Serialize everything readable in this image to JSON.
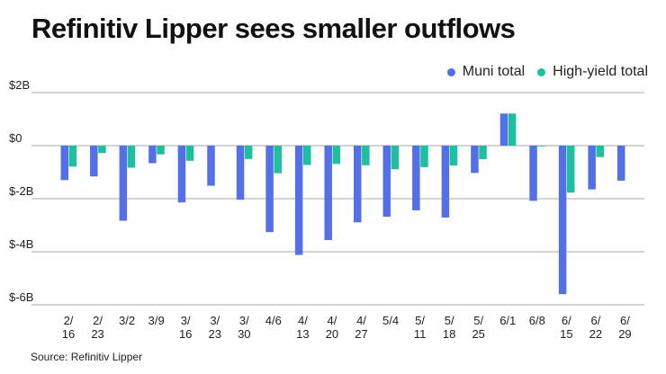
{
  "chart_data": {
    "type": "bar",
    "title": "Refinitiv Lipper sees smaller outflows",
    "xlabel": "",
    "ylabel": "",
    "ylim": [
      -6,
      2
    ],
    "yticks": [
      2,
      0,
      -2,
      -4,
      -6
    ],
    "ytick_labels": [
      "$2B",
      "$0",
      "$-2B",
      "$-4B",
      "$-6B"
    ],
    "grid": true,
    "legend_position": "top-right",
    "categories": [
      "2/16",
      "2/23",
      "3/2",
      "3/9",
      "3/16",
      "3/23",
      "3/30",
      "4/6",
      "4/13",
      "4/20",
      "4/27",
      "5/4",
      "5/11",
      "5/18",
      "5/25",
      "6/1",
      "6/8",
      "6/15",
      "6/22",
      "6/29"
    ],
    "category_labels": [
      [
        "2/",
        "16"
      ],
      [
        "2/",
        "23"
      ],
      [
        "3/2"
      ],
      [
        "3/9"
      ],
      [
        "3/",
        "16"
      ],
      [
        "3/",
        "23"
      ],
      [
        "3/",
        "30"
      ],
      [
        "4/6"
      ],
      [
        "4/",
        "13"
      ],
      [
        "4/",
        "20"
      ],
      [
        "4/",
        "27"
      ],
      [
        "5/4"
      ],
      [
        "5/",
        "11"
      ],
      [
        "5/",
        "18"
      ],
      [
        "5/",
        "25"
      ],
      [
        "6/1"
      ],
      [
        "6/8"
      ],
      [
        "6/",
        "15"
      ],
      [
        "6/",
        "22"
      ],
      [
        "6/",
        "29"
      ]
    ],
    "series": [
      {
        "name": "Muni total",
        "color": "#5470E8",
        "values": [
          -1.3,
          -1.16,
          -2.83,
          -0.66,
          -2.14,
          -1.51,
          -2.04,
          -3.26,
          -4.12,
          -3.56,
          -2.89,
          -2.68,
          -2.44,
          -2.71,
          -1.03,
          1.21,
          -2.08,
          -5.6,
          -1.65,
          -1.32
        ]
      },
      {
        "name": "High-yield total",
        "color": "#1DBF9C",
        "values": [
          -0.79,
          -0.28,
          -0.83,
          -0.33,
          -0.57,
          0,
          -0.5,
          -1.04,
          -0.73,
          -0.69,
          -0.74,
          -0.89,
          -0.81,
          -0.75,
          -0.51,
          1.21,
          -0.02,
          -1.77,
          -0.43,
          0
        ]
      }
    ],
    "unit": "billions USD"
  },
  "source": "Source: Refinitiv Lipper"
}
